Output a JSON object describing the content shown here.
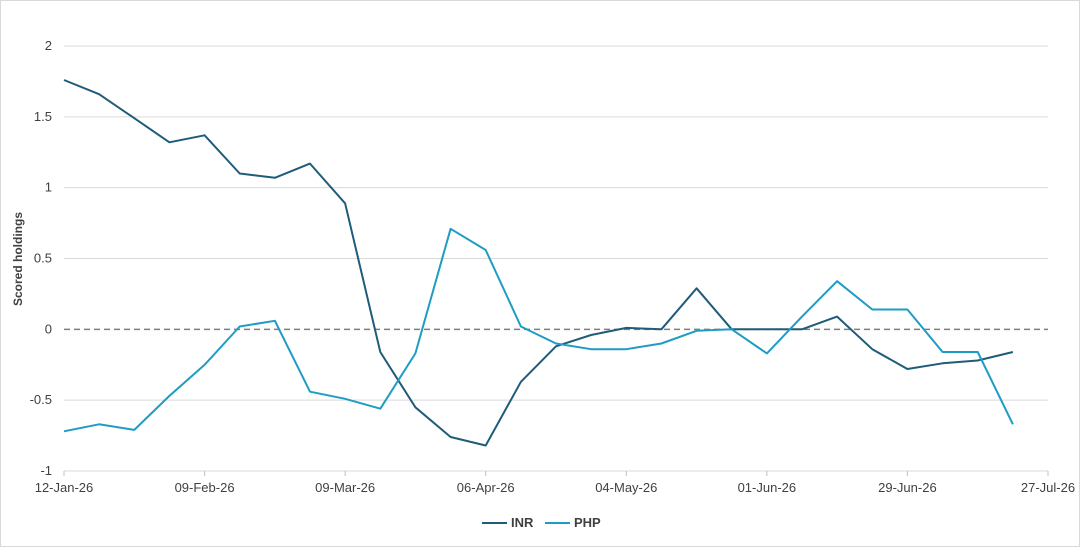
{
  "chart_data": {
    "type": "line",
    "ylabel": "Scored holdings",
    "ylim": [
      -1,
      2
    ],
    "yticks": [
      -1,
      -0.5,
      0,
      0.5,
      1,
      1.5,
      2
    ],
    "ytick_labels": [
      "-1",
      "-0.5",
      "0",
      "0.5",
      "1",
      "1.5",
      "2"
    ],
    "xlim": [
      "2026-01-12",
      "2026-07-27"
    ],
    "xticks": [
      "2026-01-12",
      "2026-02-09",
      "2026-03-09",
      "2026-04-06",
      "2026-05-04",
      "2026-06-01",
      "2026-06-29",
      "2026-07-27"
    ],
    "xtick_labels": [
      "12-Jan-26",
      "09-Feb-26",
      "09-Mar-26",
      "06-Apr-26",
      "04-May-26",
      "01-Jun-26",
      "29-Jun-26",
      "27-Jul-26"
    ],
    "gridlines": true,
    "zero_line": "dashed",
    "legend_position": "bottom",
    "x": [
      "2026-01-12",
      "2026-01-19",
      "2026-01-26",
      "2026-02-02",
      "2026-02-09",
      "2026-02-16",
      "2026-02-23",
      "2026-03-02",
      "2026-03-09",
      "2026-03-16",
      "2026-03-23",
      "2026-03-30",
      "2026-04-06",
      "2026-04-13",
      "2026-04-20",
      "2026-04-27",
      "2026-05-04",
      "2026-05-11",
      "2026-05-18",
      "2026-05-25",
      "2026-06-01",
      "2026-06-08",
      "2026-06-15",
      "2026-06-22",
      "2026-06-29",
      "2026-07-06",
      "2026-07-13",
      "2026-07-20"
    ],
    "series": [
      {
        "name": "INR",
        "color": "#1f5c7a",
        "values": [
          1.76,
          1.66,
          1.49,
          1.32,
          1.37,
          1.1,
          1.07,
          1.17,
          0.89,
          -0.16,
          -0.55,
          -0.76,
          -0.82,
          -0.37,
          -0.12,
          -0.04,
          0.01,
          0.0,
          0.29,
          0.0,
          0.0,
          0.0,
          0.09,
          -0.14,
          -0.28,
          -0.24,
          -0.22,
          -0.16
        ]
      },
      {
        "name": "PHP",
        "color": "#1e9cc4",
        "values": [
          -0.72,
          -0.67,
          -0.71,
          -0.47,
          -0.25,
          0.02,
          0.06,
          -0.44,
          -0.49,
          -0.56,
          -0.17,
          0.71,
          0.56,
          0.02,
          -0.1,
          -0.14,
          -0.14,
          -0.1,
          -0.01,
          0.0,
          -0.17,
          0.09,
          0.34,
          0.14,
          0.14,
          -0.16,
          -0.16,
          -0.67
        ]
      }
    ]
  }
}
